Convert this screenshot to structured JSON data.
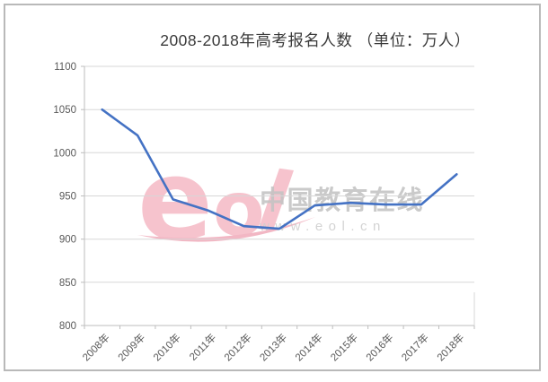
{
  "window": {
    "background": "#ffffff",
    "frame_border_color": "#b9b9b9"
  },
  "chart_data": {
    "type": "line",
    "title": "2008-2018年高考报名人数 （单位：万人）",
    "categories": [
      "2008年",
      "2009年",
      "2010年",
      "2011年",
      "2012年",
      "2013年",
      "2014年",
      "2015年",
      "2016年",
      "2017年",
      "2018年"
    ],
    "values": [
      1050,
      1020,
      946,
      933,
      915,
      912,
      939,
      942,
      940,
      940,
      975
    ],
    "xlabel": "",
    "ylabel": "",
    "ylim": [
      800,
      1100
    ],
    "ytick_step": 50,
    "y_ticks": [
      800,
      850,
      900,
      950,
      1000,
      1050,
      1100
    ],
    "y_tick_labels": [
      "800",
      "850",
      "900",
      "950",
      "1000",
      "1050",
      "1100"
    ],
    "grid": "horizontal",
    "legend": "none",
    "x_label_rotation": -45,
    "line_color": "#4472c4",
    "gridline_color": "#d7d7d7",
    "axis_color": "#bdbdbd",
    "tick_label_color": "#595959",
    "title_color": "#3a3a3a"
  },
  "watermark": {
    "logo_letters": [
      "e",
      "o",
      "l"
    ],
    "brand_name": "中国教育在线",
    "brand_url": "www.eol.cn",
    "logo_color_light": "#f2a9b6",
    "logo_color_dark": "#e87e95",
    "text_color": "#c3c3c3"
  }
}
